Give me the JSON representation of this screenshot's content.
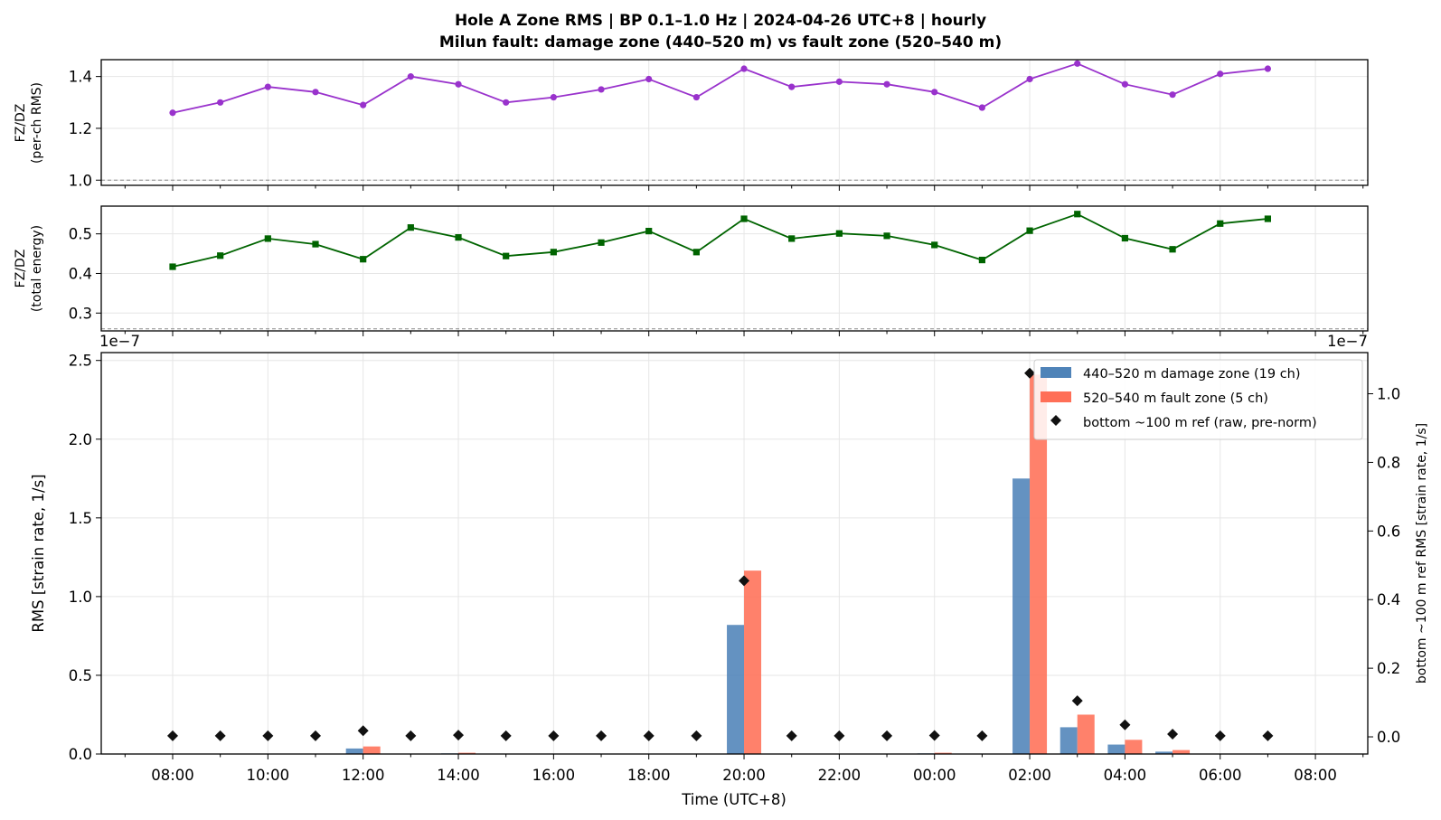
{
  "figure": {
    "title_line1": "Hole A Zone RMS  |  BP 0.1–1.0 Hz  |  2024-04-26 UTC+8  |  hourly",
    "title_line2": "Milun fault: damage zone (440–520 m) vs fault zone (520–540 m)"
  },
  "chart_data": [
    {
      "type": "line",
      "ylabel_line1": "FZ/DZ",
      "ylabel_line2": "(per-ch RMS)",
      "ylim": [
        0.98,
        1.465
      ],
      "yticks": [
        "1.0",
        "1.2",
        "1.4"
      ],
      "ytick_values": [
        1.0,
        1.2,
        1.4
      ],
      "reference_line": 1.0,
      "grid": true,
      "color": "#9932cc",
      "marker": "circle",
      "x": [
        "08:00",
        "09:00",
        "10:00",
        "11:00",
        "12:00",
        "13:00",
        "14:00",
        "15:00",
        "16:00",
        "17:00",
        "18:00",
        "19:00",
        "20:00",
        "21:00",
        "22:00",
        "23:00",
        "00:00",
        "01:00",
        "02:00",
        "03:00",
        "04:00",
        "05:00",
        "06:00",
        "07:00"
      ],
      "values": [
        1.26,
        1.3,
        1.36,
        1.34,
        1.29,
        1.4,
        1.37,
        1.3,
        1.32,
        1.35,
        1.39,
        1.32,
        1.43,
        1.36,
        1.38,
        1.37,
        1.34,
        1.28,
        1.39,
        1.45,
        1.37,
        1.33,
        1.41,
        1.43
      ]
    },
    {
      "type": "line",
      "ylabel_line1": "FZ/DZ",
      "ylabel_line2": "(total energy)",
      "ylim": [
        0.255,
        0.57
      ],
      "yticks": [
        "0.3",
        "0.4",
        "0.5"
      ],
      "ytick_values": [
        0.3,
        0.4,
        0.5
      ],
      "reference_line": 0.26,
      "grid": true,
      "color": "#006400",
      "marker": "square",
      "x": [
        "08:00",
        "09:00",
        "10:00",
        "11:00",
        "12:00",
        "13:00",
        "14:00",
        "15:00",
        "16:00",
        "17:00",
        "18:00",
        "19:00",
        "20:00",
        "21:00",
        "22:00",
        "23:00",
        "00:00",
        "01:00",
        "02:00",
        "03:00",
        "04:00",
        "05:00",
        "06:00",
        "07:00"
      ],
      "values": [
        0.417,
        0.445,
        0.488,
        0.474,
        0.436,
        0.516,
        0.491,
        0.444,
        0.454,
        0.478,
        0.507,
        0.454,
        0.538,
        0.488,
        0.501,
        0.495,
        0.472,
        0.434,
        0.508,
        0.55,
        0.489,
        0.461,
        0.526,
        0.538
      ]
    },
    {
      "type": "bar",
      "ylabel": "RMS  [strain rate, 1/s]",
      "ylabel_right": "bottom ~100 m ref RMS  [strain rate, 1/s]",
      "xlabel": "Time (UTC+8)",
      "offset_left": "1e−7",
      "offset_right": "1e−7",
      "ylim": [
        0,
        2.55
      ],
      "yticks": [
        "0.0",
        "0.5",
        "1.0",
        "1.5",
        "2.0",
        "2.5"
      ],
      "ytick_values": [
        0,
        0.5,
        1.0,
        1.5,
        2.0,
        2.5
      ],
      "ylim_right": [
        -0.05,
        1.12
      ],
      "yticks_right": [
        "0.0",
        "0.2",
        "0.4",
        "0.6",
        "0.8",
        "1.0"
      ],
      "ytick_values_right": [
        0,
        0.2,
        0.4,
        0.6,
        0.8,
        1.0
      ],
      "xticks": [
        "08:00",
        "10:00",
        "12:00",
        "14:00",
        "16:00",
        "18:00",
        "20:00",
        "22:00",
        "00:00",
        "02:00",
        "04:00",
        "06:00",
        "08:00"
      ],
      "grid": true,
      "legend_position": "top-right",
      "categories": [
        "08:00",
        "09:00",
        "10:00",
        "11:00",
        "12:00",
        "13:00",
        "14:00",
        "15:00",
        "16:00",
        "17:00",
        "18:00",
        "19:00",
        "20:00",
        "21:00",
        "22:00",
        "23:00",
        "00:00",
        "01:00",
        "02:00",
        "03:00",
        "04:00",
        "05:00",
        "06:00",
        "07:00"
      ],
      "series": [
        {
          "name": "440–520 m  damage zone (19 ch)",
          "color": "#4f83b8",
          "values": [
            0.002,
            0.002,
            0.002,
            0.002,
            0.035,
            0.002,
            0.004,
            0.002,
            0.002,
            0.002,
            0.002,
            0.002,
            0.82,
            0.002,
            0.002,
            0.002,
            0.004,
            0.002,
            1.75,
            0.17,
            0.06,
            0.015,
            0.002,
            0.002
          ]
        },
        {
          "name": "520–540 m  fault zone (5 ch)",
          "color": "#ff6f57",
          "values": [
            0.002,
            0.002,
            0.002,
            0.002,
            0.048,
            0.002,
            0.008,
            0.002,
            0.002,
            0.002,
            0.002,
            0.002,
            1.165,
            0.002,
            0.002,
            0.002,
            0.008,
            0.002,
            2.41,
            0.25,
            0.09,
            0.025,
            0.002,
            0.002
          ]
        },
        {
          "name": "bottom ~100 m ref (raw, pre-norm)",
          "color": "#111111",
          "marker": "diamond",
          "axis": "right",
          "values": [
            0.003,
            0.003,
            0.003,
            0.003,
            0.018,
            0.003,
            0.005,
            0.003,
            0.003,
            0.003,
            0.003,
            0.003,
            0.455,
            0.003,
            0.003,
            0.003,
            0.004,
            0.003,
            1.06,
            0.105,
            0.035,
            0.008,
            0.003,
            0.003
          ]
        }
      ]
    }
  ]
}
